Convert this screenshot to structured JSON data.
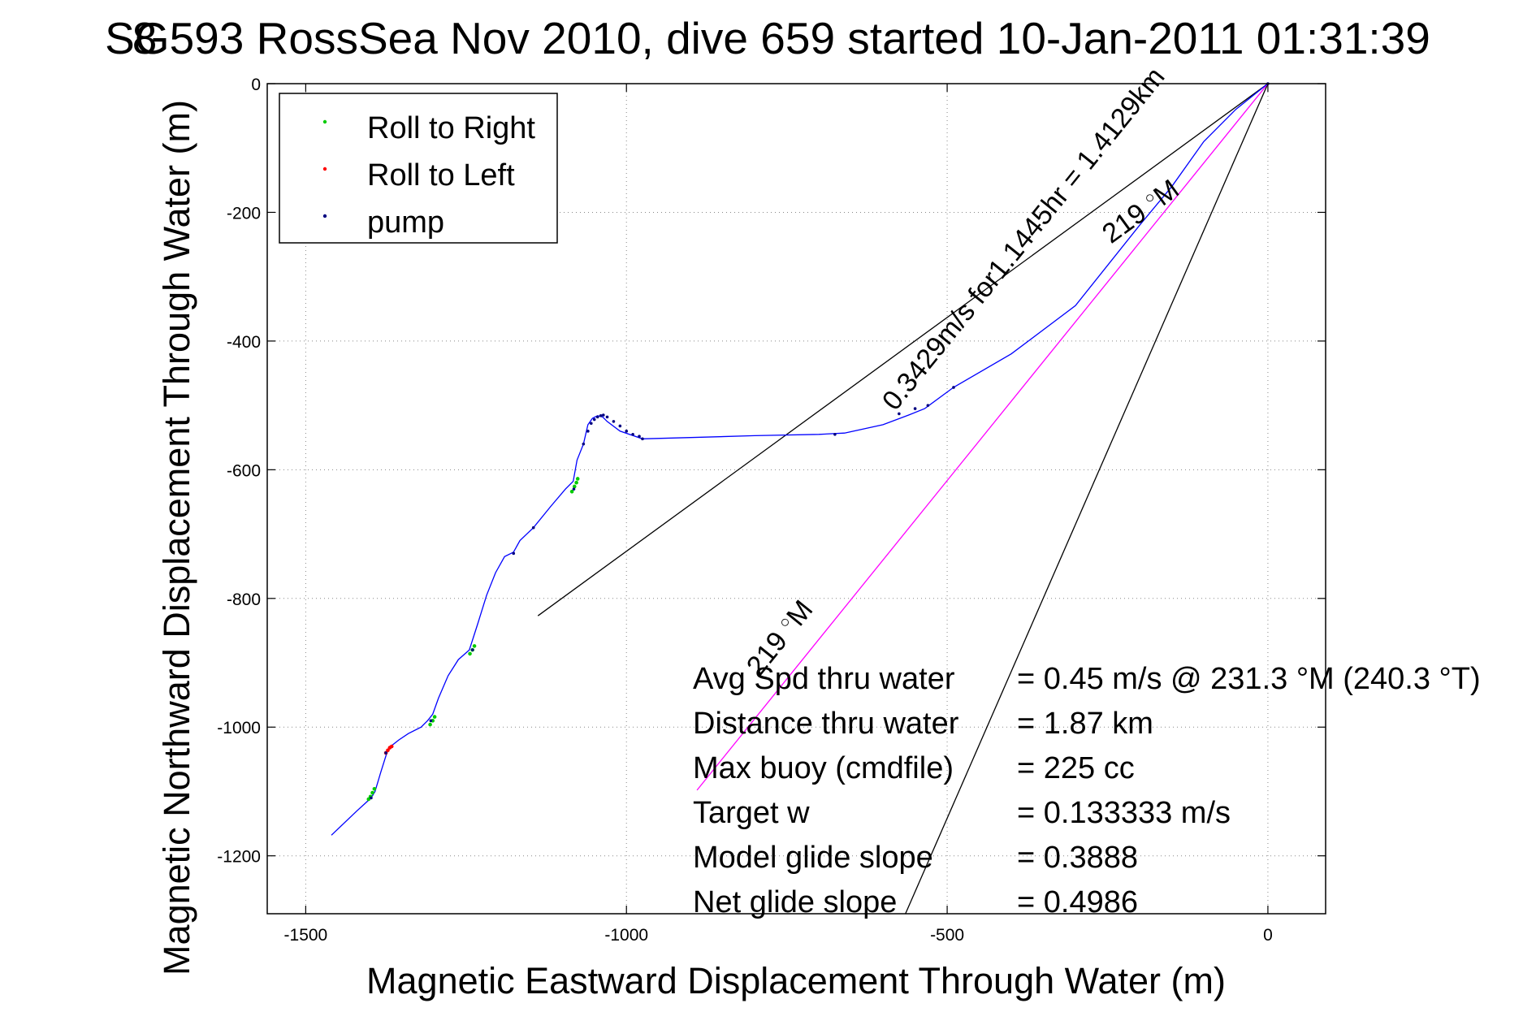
{
  "chart_data": {
    "type": "line",
    "title": "SG593 RossSea Nov 2010, dive 659 started 10-Jan-2011 01:31:39",
    "title_overlap_glyph": "8",
    "xlabel": "Magnetic Eastward Displacement Through Water (m)",
    "ylabel": "Magnetic Northward Displacement Through Water (m)",
    "xlim": [
      -1560,
      90
    ],
    "ylim": [
      -1290,
      0
    ],
    "xticks": [
      -1500,
      -1000,
      -500,
      0
    ],
    "yticks": [
      0,
      -200,
      -400,
      -600,
      -800,
      -1000,
      -1200
    ],
    "grid": true,
    "legend_placement": "top-left",
    "legend": [
      {
        "label": "Roll to Right",
        "color": "#00cc00"
      },
      {
        "label": "Roll to Left",
        "color": "#ff0000"
      },
      {
        "label": "pump",
        "color": "#000080"
      }
    ],
    "track": {
      "color": "#0000ff",
      "x": [
        -1460,
        -1420,
        -1398,
        -1392,
        -1383,
        -1372,
        -1365,
        -1355,
        -1340,
        -1320,
        -1310,
        -1302,
        -1293,
        -1278,
        -1262,
        -1245,
        -1232,
        -1218,
        -1204,
        -1190,
        -1176,
        -1166,
        -1145,
        -1118,
        -1095,
        -1083,
        -1077,
        -1067,
        -1060,
        -1053,
        -1045,
        -1037,
        -1030,
        -1010,
        -975,
        -900,
        -800,
        -700,
        -660,
        -600,
        -560,
        -535,
        -490,
        -400,
        -300,
        -200,
        -150,
        -100,
        -50,
        0
      ],
      "y": [
        -1168,
        -1130,
        -1110,
        -1100,
        -1070,
        -1035,
        -1028,
        -1020,
        -1010,
        -1000,
        -990,
        -980,
        -955,
        -920,
        -895,
        -880,
        -840,
        -795,
        -760,
        -735,
        -728,
        -710,
        -690,
        -657,
        -630,
        -618,
        -585,
        -560,
        -530,
        -520,
        -516,
        -518,
        -525,
        -540,
        -552,
        -550,
        -547,
        -545,
        -543,
        -530,
        -515,
        -505,
        -472,
        -420,
        -345,
        -220,
        -160,
        -90,
        -40,
        0
      ]
    },
    "roll_right_points": {
      "color": "#00cc00",
      "x": [
        -1402,
        -1399,
        -1396,
        -1393,
        -1306,
        -1302,
        -1299,
        -1244,
        -1240,
        -1237,
        -1085,
        -1081,
        -1078,
        -1076
      ],
      "y": [
        -1112,
        -1108,
        -1102,
        -1096,
        -996,
        -990,
        -984,
        -886,
        -880,
        -874,
        -634,
        -626,
        -620,
        -614
      ]
    },
    "roll_left_points": {
      "color": "#ff0000",
      "x": [
        -1375,
        -1372,
        -1369,
        -1366
      ],
      "y": [
        -1040,
        -1036,
        -1032,
        -1030
      ]
    },
    "pump_points": {
      "color": "#000080",
      "x": [
        -1398,
        -1375,
        -1305,
        -1240,
        -1176,
        -1145,
        -1082,
        -1067,
        -1060,
        -1055,
        -1050,
        -1045,
        -1040,
        -1036,
        -1030,
        -1020,
        -1010,
        -1000,
        -990,
        -980,
        -975,
        -675,
        -575,
        -550,
        -530,
        -490,
        0
      ],
      "y": [
        -1110,
        -1040,
        -990,
        -880,
        -730,
        -690,
        -630,
        -560,
        -540,
        -528,
        -522,
        -518,
        -516,
        -515,
        -518,
        -525,
        -532,
        -540,
        -545,
        -548,
        -552,
        -545,
        -513,
        -505,
        -500,
        -472,
        0
      ]
    },
    "bearing_lines": [
      {
        "color": "#000000",
        "x": [
          0,
          -1138
        ],
        "y": [
          0,
          -827
        ]
      },
      {
        "color": "#000000",
        "x": [
          0,
          -565
        ],
        "y": [
          0,
          -1290
        ]
      },
      {
        "color": "#ff00ff",
        "x": [
          0,
          -890
        ],
        "y": [
          0,
          -1098
        ]
      }
    ],
    "rotated_annotations": [
      {
        "text": "219",
        "suffix": "M",
        "x": -190,
        "y": -210
      },
      {
        "text": "0.3429m/s for1.1445hr = 1.4129km",
        "x": -370,
        "y": -250
      },
      {
        "text": "219",
        "suffix": "M",
        "x": -750,
        "y": -870
      }
    ],
    "annotation_block": [
      {
        "label": "Avg Spd thru water",
        "value": "=  0.45 m/s @ 231.3 °M (240.3 °T)"
      },
      {
        "label": "Distance thru water",
        "value": "=  1.87 km"
      },
      {
        "label": "Max buoy (cmdfile)",
        "value": "= 225 cc"
      },
      {
        "label": "Target w",
        "value": "= 0.133333 m/s"
      },
      {
        "label": "Model glide slope",
        "value": "= 0.3888"
      },
      {
        "label": "Net glide slope",
        "value": "= 0.4986"
      }
    ]
  }
}
